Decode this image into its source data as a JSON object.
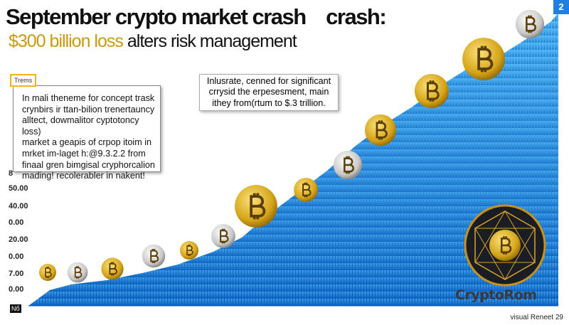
{
  "header": {
    "title": "September crypto market crash    crash:",
    "highlight": "$300 billion loss",
    "subtitle": "alters risk management"
  },
  "badge": "2",
  "left_box": {
    "tag": "Trems",
    "lines": [
      "In mali theneme for concept trask",
      "crynbirs ir ttan-bilion trenertauncy",
      "alltect, dowmalitor cyptotoncy loss)",
      "market a geapis of crpop itoim in",
      "mrket im-laget h:@9.3.2.2 from",
      "finaal gren bimgisal cryphorcalion",
      "mading! recolerabler in nakent!"
    ]
  },
  "center_box": {
    "lines": [
      "Inlusrate, cenned for significant",
      "crrysid the erpesesment, main",
      "ithey from(rtum to $.3 trillion."
    ]
  },
  "axis_labels": [
    "8",
    "50.00",
    "40.00",
    "0.00",
    "20.00",
    "0.00",
    "7.00",
    "0.00"
  ],
  "corner_label": "Nб",
  "logo": "CryptoRom",
  "footer": "visual Reneet 29"
}
